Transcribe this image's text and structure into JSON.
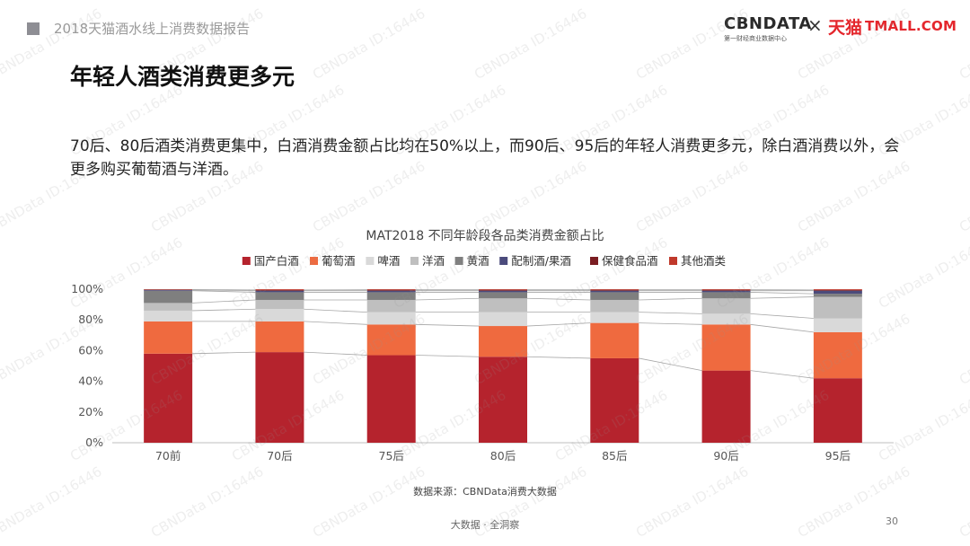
{
  "header": {
    "title": "2018天猫酒水线上消费数据报告",
    "brand_cbn": "CBNDATA",
    "brand_cbn_sub": "第一财经商业数据中心",
    "brand_sep": "×",
    "brand_tmall_cn": "天猫",
    "brand_tmall_en": "TMALL.COM"
  },
  "page_title": "年轻人酒类消费更多元",
  "description": "70后、80后酒类消费更集中，白酒消费金额占比均在50%以上，而90后、95后的年轻人消费更多元，除白酒消费以外，会更多购买葡萄酒与洋酒。",
  "watermark_text": "CBNData ID:16446",
  "chart_data": {
    "type": "bar",
    "stacked": true,
    "title": "MAT2018  不同年龄段各品类消费金额占比",
    "categories": [
      "70前",
      "70后",
      "75后",
      "80后",
      "85后",
      "90后",
      "95后"
    ],
    "series": [
      {
        "name": "国产白酒",
        "color": "#b5232d",
        "values": [
          58,
          59,
          57,
          56,
          55,
          47,
          42
        ]
      },
      {
        "name": "葡萄酒",
        "color": "#ef6a3f",
        "values": [
          21,
          20,
          20,
          20,
          23,
          30,
          30
        ]
      },
      {
        "name": "啤酒",
        "color": "#d9d9d9",
        "values": [
          7,
          8,
          8,
          9,
          7,
          7,
          9
        ]
      },
      {
        "name": "洋酒",
        "color": "#bfbfbf",
        "values": [
          5,
          6,
          8,
          9,
          8,
          10,
          14
        ]
      },
      {
        "name": "黄酒",
        "color": "#7f7f7f",
        "values": [
          8,
          5,
          5,
          4,
          5,
          4,
          2
        ]
      },
      {
        "name": "配制酒/果酒",
        "color": "#4b4b7c",
        "values": [
          0.5,
          1,
          1,
          1,
          1,
          1,
          2
        ]
      },
      {
        "name": "保健食品酒",
        "color": "#7a1d22",
        "values": [
          0.3,
          0.5,
          0.6,
          0.6,
          0.6,
          0.6,
          0.5
        ]
      },
      {
        "name": "其他酒类",
        "color": "#c0392b",
        "values": [
          0.2,
          0.5,
          0.4,
          0.4,
          0.4,
          0.4,
          0.5
        ]
      }
    ],
    "y_ticks": [
      "0%",
      "20%",
      "40%",
      "60%",
      "80%",
      "100%"
    ],
    "ylim": [
      0,
      100
    ],
    "legend_position": "top",
    "grid": false
  },
  "source": "数据来源：CBNData消费大数据",
  "footer": "大数据 · 全洞察",
  "page_number": "30"
}
